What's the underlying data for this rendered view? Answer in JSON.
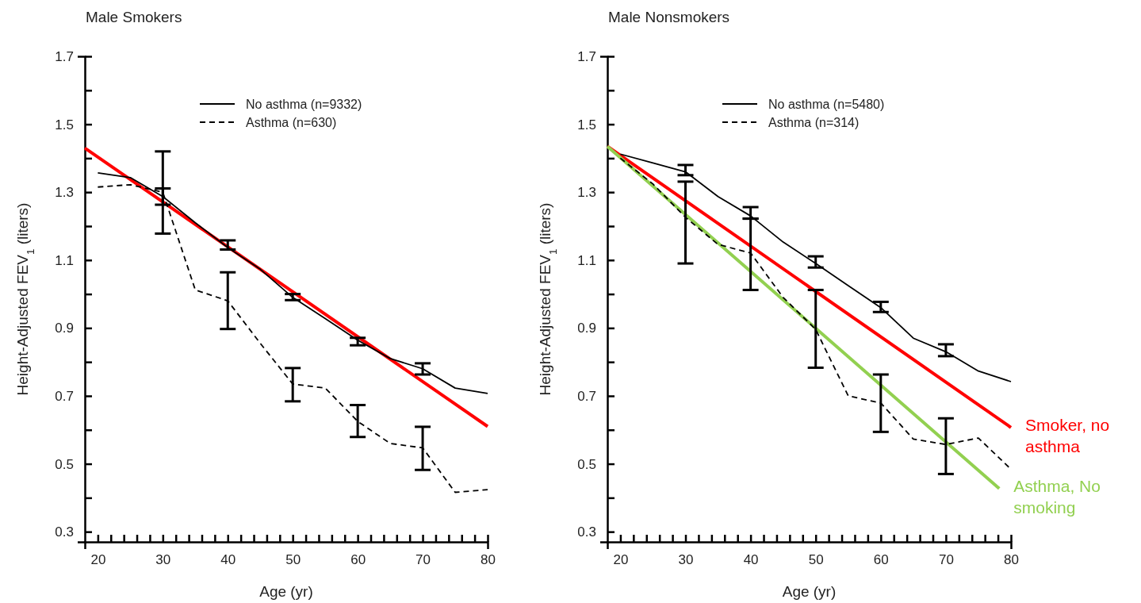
{
  "chart_data": [
    {
      "type": "line",
      "title": "Male Smokers",
      "xlabel": "Age (yr)",
      "ylabel": "Height-Adjusted FEV$_{1}$ (liters)",
      "xlim": [
        18,
        80
      ],
      "ylim": [
        0.27,
        1.7
      ],
      "xticks": [
        20,
        {
          "value": 22,
          "label": null
        },
        {
          "value": 24,
          "label": null
        },
        {
          "value": 26,
          "label": null
        },
        {
          "value": 28,
          "label": null
        },
        30,
        {
          "value": 32,
          "label": null
        },
        {
          "value": 34,
          "label": null
        },
        {
          "value": 36,
          "label": null
        },
        {
          "value": 38,
          "label": null
        },
        40,
        {
          "value": 42,
          "label": null
        },
        {
          "value": 44,
          "label": null
        },
        {
          "value": 46,
          "label": null
        },
        {
          "value": 48,
          "label": null
        },
        50,
        {
          "value": 52,
          "label": null
        },
        {
          "value": 54,
          "label": null
        },
        {
          "value": 56,
          "label": null
        },
        {
          "value": 58,
          "label": null
        },
        60,
        {
          "value": 62,
          "label": null
        },
        {
          "value": 64,
          "label": null
        },
        {
          "value": 66,
          "label": null
        },
        {
          "value": 68,
          "label": null
        },
        70,
        {
          "value": 72,
          "label": null
        },
        {
          "value": 74,
          "label": null
        },
        {
          "value": 76,
          "label": null
        },
        {
          "value": 78,
          "label": null
        },
        80
      ],
      "yticks": [
        0.3,
        {
          "value": 0.4,
          "label": null
        },
        0.5,
        {
          "value": 0.6,
          "label": null
        },
        0.7,
        {
          "value": 0.8,
          "label": null
        },
        0.9,
        {
          "value": 1.0,
          "label": null
        },
        1.1,
        {
          "value": 1.2,
          "label": null
        },
        1.3,
        {
          "value": 1.4,
          "label": null
        },
        1.5,
        {
          "value": 1.6,
          "label": null
        },
        1.7
      ],
      "legend": "top",
      "grid": false,
      "series": [
        {
          "name": "No asthma (n=9332)",
          "color": "#000000",
          "line_style": "solid",
          "x": [
            20,
            25,
            30,
            35,
            40,
            45,
            50,
            55,
            60,
            65,
            70,
            75,
            80
          ],
          "values": [
            1.357,
            1.343,
            1.287,
            1.21,
            1.137,
            1.073,
            0.99,
            0.928,
            0.864,
            0.81,
            0.78,
            0.723,
            0.707
          ],
          "errors": [
            null,
            null,
            [
              1.263,
              1.311
            ],
            null,
            [
              1.131,
              1.158
            ],
            null,
            [
              0.982,
              1.0
            ],
            null,
            [
              0.849,
              0.871
            ],
            null,
            [
              0.763,
              0.796
            ],
            null,
            null
          ]
        },
        {
          "name": "Asthma (n=630)",
          "color": "#000000",
          "line_style": "dashed",
          "x": [
            20,
            25,
            30,
            35,
            40,
            45,
            50,
            55,
            60,
            65,
            70,
            75,
            80
          ],
          "values": [
            1.315,
            1.322,
            1.3,
            1.012,
            0.98,
            0.855,
            0.735,
            0.723,
            0.625,
            0.56,
            0.547,
            0.416,
            0.424
          ],
          "errors": [
            null,
            null,
            [
              1.178,
              1.42
            ],
            null,
            [
              0.897,
              1.064
            ],
            null,
            [
              0.684,
              0.782
            ],
            null,
            [
              0.579,
              0.673
            ],
            null,
            [
              0.482,
              0.609
            ],
            null,
            null
          ]
        },
        {
          "color": "#ff0000",
          "line_style": "solid",
          "x": [
            18,
            80
          ],
          "values": [
            1.43,
            0.61
          ]
        }
      ]
    },
    {
      "type": "line",
      "title": "Male Nonsmokers",
      "xlabel": "Age (yr)",
      "ylabel": "Height-Adjusted FEV$_{1}$ (liters)",
      "xlim": [
        18,
        80
      ],
      "ylim": [
        0.27,
        1.7
      ],
      "xticks": [
        20,
        {
          "value": 22,
          "label": null
        },
        {
          "value": 24,
          "label": null
        },
        {
          "value": 26,
          "label": null
        },
        {
          "value": 28,
          "label": null
        },
        30,
        {
          "value": 32,
          "label": null
        },
        {
          "value": 34,
          "label": null
        },
        {
          "value": 36,
          "label": null
        },
        {
          "value": 38,
          "label": null
        },
        40,
        {
          "value": 42,
          "label": null
        },
        {
          "value": 44,
          "label": null
        },
        {
          "value": 46,
          "label": null
        },
        {
          "value": 48,
          "label": null
        },
        50,
        {
          "value": 52,
          "label": null
        },
        {
          "value": 54,
          "label": null
        },
        {
          "value": 56,
          "label": null
        },
        {
          "value": 58,
          "label": null
        },
        60,
        {
          "value": 62,
          "label": null
        },
        {
          "value": 64,
          "label": null
        },
        {
          "value": 66,
          "label": null
        },
        {
          "value": 68,
          "label": null
        },
        70,
        {
          "value": 72,
          "label": null
        },
        {
          "value": 74,
          "label": null
        },
        {
          "value": 76,
          "label": null
        },
        {
          "value": 78,
          "label": null
        },
        80
      ],
      "yticks": [
        0.3,
        {
          "value": 0.4,
          "label": null
        },
        0.5,
        {
          "value": 0.6,
          "label": null
        },
        0.7,
        {
          "value": 0.8,
          "label": null
        },
        0.9,
        {
          "value": 1.0,
          "label": null
        },
        1.1,
        {
          "value": 1.2,
          "label": null
        },
        1.3,
        {
          "value": 1.4,
          "label": null
        },
        1.5,
        {
          "value": 1.6,
          "label": null
        },
        1.7
      ],
      "legend": "top",
      "grid": false,
      "series": [
        {
          "name": "No asthma (n=5480)",
          "color": "#000000",
          "line_style": "solid",
          "x": [
            20,
            25,
            30,
            35,
            40,
            45,
            50,
            55,
            60,
            65,
            70,
            75,
            80
          ],
          "values": [
            1.412,
            1.386,
            1.36,
            1.287,
            1.23,
            1.153,
            1.09,
            1.025,
            0.96,
            0.87,
            0.83,
            0.773,
            0.742
          ],
          "errors": [
            null,
            null,
            [
              1.35,
              1.38
            ],
            null,
            [
              1.222,
              1.256
            ],
            null,
            [
              1.078,
              1.111
            ],
            null,
            [
              0.947,
              0.977
            ],
            null,
            [
              0.817,
              0.852
            ],
            null,
            null
          ]
        },
        {
          "name": "Asthma (n=314)",
          "color": "#000000",
          "line_style": "dashed",
          "x": [
            20,
            25,
            30,
            35,
            40,
            45,
            50,
            55,
            60,
            65,
            70,
            75,
            80
          ],
          "values": [
            1.4,
            1.324,
            1.226,
            1.146,
            1.121,
            0.99,
            0.896,
            0.7,
            0.679,
            0.573,
            0.557,
            0.576,
            0.484
          ],
          "errors": [
            null,
            null,
            [
              1.09,
              1.331
            ],
            null,
            [
              1.012,
              1.222
            ],
            null,
            [
              0.783,
              1.012
            ],
            null,
            [
              0.594,
              0.763
            ],
            null,
            [
              0.47,
              0.634
            ],
            null,
            null
          ]
        },
        {
          "name": "Smoker, no asthma",
          "color": "#ff0000",
          "line_style": "solid",
          "x": [
            18,
            80
          ],
          "values": [
            1.435,
            0.607
          ]
        },
        {
          "name": "Asthma, No smoking",
          "color": "#92d050",
          "line_style": "solid",
          "x": [
            18,
            78.2
          ],
          "values": [
            1.435,
            0.427
          ]
        }
      ]
    }
  ]
}
